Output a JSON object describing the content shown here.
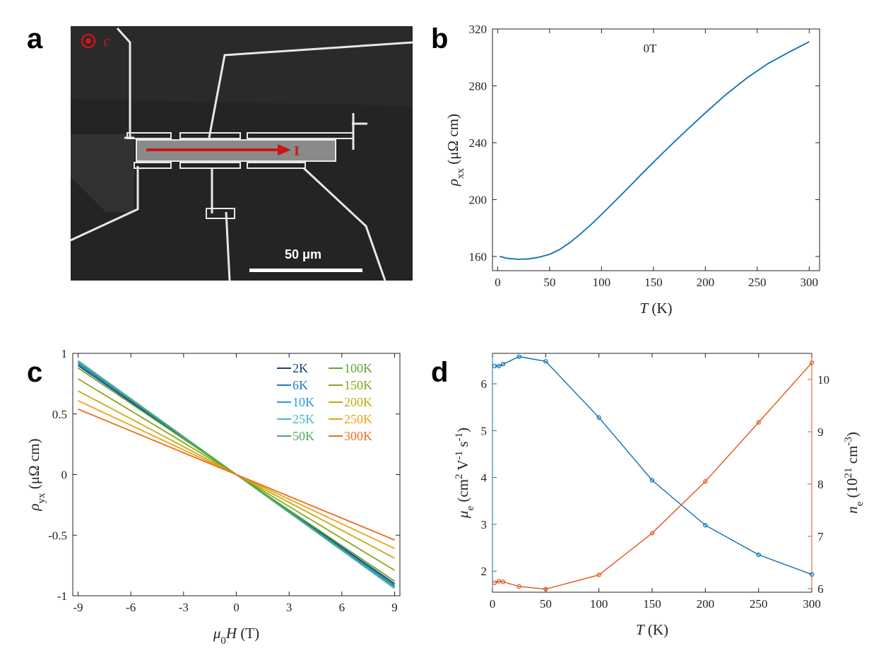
{
  "panels": {
    "a": "a",
    "b": "b",
    "c": "c",
    "d": "d"
  },
  "micrograph": {
    "axis_label": "c",
    "current_label": "I",
    "scale_bar_label": "50 μm"
  },
  "chart_data": [
    {
      "panel": "b",
      "type": "line",
      "annotation": "0T",
      "xlabel": "T (K)",
      "ylabel": "ρxx (μΩ cm)",
      "xlim": [
        -5,
        310
      ],
      "ylim": [
        150,
        320
      ],
      "xticks": [
        0,
        50,
        100,
        150,
        200,
        250,
        300
      ],
      "yticks": [
        160,
        200,
        240,
        280,
        320
      ],
      "color": "#0b6fb5",
      "x": [
        2,
        10,
        20,
        30,
        40,
        50,
        60,
        70,
        80,
        90,
        100,
        120,
        140,
        160,
        180,
        200,
        220,
        240,
        260,
        280,
        300
      ],
      "y": [
        160,
        158.6,
        158.0,
        158.3,
        159.5,
        161.5,
        165,
        170,
        176,
        182.5,
        189.5,
        204,
        219,
        233.5,
        247.5,
        261,
        274,
        285.5,
        295.5,
        303.5,
        311
      ]
    },
    {
      "panel": "c",
      "type": "line",
      "xlabel": "μ0H (T)",
      "ylabel": "ρyx (μΩ cm)",
      "xlim": [
        -9.3,
        9.3
      ],
      "ylim": [
        -1,
        1
      ],
      "xticks": [
        -9,
        -6,
        -3,
        0,
        3,
        6,
        9
      ],
      "yticks": [
        -1,
        -0.5,
        0,
        0.5,
        1
      ],
      "legend_columns": 2,
      "series": [
        {
          "name": "2K",
          "color": "#1b3f7a",
          "x": [
            -9,
            9
          ],
          "y": [
            0.9,
            -0.9
          ]
        },
        {
          "name": "6K",
          "color": "#1f78c8",
          "x": [
            -9,
            9
          ],
          "y": [
            0.915,
            -0.915
          ]
        },
        {
          "name": "10K",
          "color": "#2a9ad6",
          "x": [
            -9,
            9
          ],
          "y": [
            0.925,
            -0.925
          ]
        },
        {
          "name": "25K",
          "color": "#45b8c8",
          "x": [
            -9,
            9
          ],
          "y": [
            0.94,
            -0.94
          ]
        },
        {
          "name": "50K",
          "color": "#4fa86a",
          "x": [
            -9,
            9
          ],
          "y": [
            0.93,
            -0.93
          ]
        },
        {
          "name": "100K",
          "color": "#5da533",
          "x": [
            -9,
            9
          ],
          "y": [
            0.88,
            -0.88
          ]
        },
        {
          "name": "150K",
          "color": "#8aa61c",
          "x": [
            -9,
            9
          ],
          "y": [
            0.79,
            -0.79
          ]
        },
        {
          "name": "200K",
          "color": "#c3ad10",
          "x": [
            -9,
            9
          ],
          "y": [
            0.69,
            -0.69
          ]
        },
        {
          "name": "250K",
          "color": "#e9a317",
          "x": [
            -9,
            9
          ],
          "y": [
            0.61,
            -0.61
          ]
        },
        {
          "name": "300K",
          "color": "#e8701f",
          "x": [
            -9,
            9
          ],
          "y": [
            0.54,
            -0.54
          ]
        }
      ]
    },
    {
      "panel": "d",
      "type": "line",
      "xlabel": "T (K)",
      "ylabel_left": "μe (cm2 V-1 s-1)",
      "ylabel_right": "ne (1021 cm-3)",
      "xlim": [
        0,
        300
      ],
      "ylim_left": [
        1.55,
        6.65
      ],
      "ylim_right": [
        5.93,
        10.5
      ],
      "xticks": [
        0,
        50,
        100,
        150,
        200,
        250,
        300
      ],
      "yticks_left": [
        2,
        3,
        4,
        5,
        6
      ],
      "yticks_right": [
        6,
        7,
        8,
        9,
        10
      ],
      "series": [
        {
          "name": "μe",
          "axis": "left",
          "color": "#0b6fb5",
          "x": [
            2,
            6,
            10,
            25,
            50,
            100,
            150,
            200,
            250,
            300
          ],
          "y": [
            6.38,
            6.38,
            6.42,
            6.58,
            6.48,
            5.28,
            3.94,
            2.98,
            2.35,
            1.93
          ]
        },
        {
          "name": "ne",
          "axis": "right",
          "color": "#e0561b",
          "x": [
            2,
            6,
            10,
            25,
            50,
            100,
            150,
            200,
            250,
            300
          ],
          "y": [
            6.11,
            6.14,
            6.13,
            6.04,
            5.99,
            6.26,
            7.06,
            8.05,
            9.18,
            10.32
          ]
        }
      ]
    }
  ]
}
